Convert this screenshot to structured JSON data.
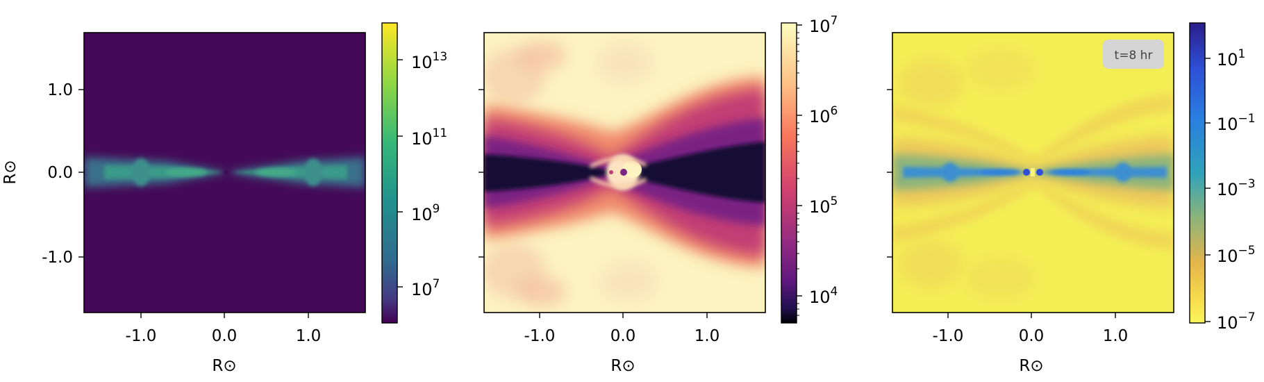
{
  "chart_data": [
    {
      "type": "heatmap",
      "panel": "left",
      "x_ticks": [
        "-1.0",
        "0.0",
        "1.0"
      ],
      "y_ticks": [
        "1.0",
        "0.0",
        "-1.0"
      ],
      "x_tick_values": [
        -1.0,
        0.0,
        1.0
      ],
      "y_tick_values": [
        1.0,
        0.0,
        -1.0
      ],
      "xlim": [
        -1.65,
        1.65
      ],
      "ylim": [
        -1.65,
        1.65
      ],
      "xlabel": "R⊙",
      "ylabel": "R⊙",
      "colorbar": {
        "scale": "log",
        "range": [
          1000000.0,
          100000000000000.0
        ],
        "ticks": [
          {
            "base": "10",
            "exp": "13"
          },
          {
            "base": "10",
            "exp": "11"
          },
          {
            "base": "10",
            "exp": "9"
          },
          {
            "base": "10",
            "exp": "7"
          }
        ],
        "tick_values": [
          10000000000000.0,
          100000000000.0,
          1000000000.0,
          10000000.0
        ],
        "colormap": "viridis"
      }
    },
    {
      "type": "heatmap",
      "panel": "middle",
      "x_ticks": [
        "-1.0",
        "0.0",
        "1.0"
      ],
      "x_tick_values": [
        -1.0,
        0.0,
        1.0
      ],
      "xlim": [
        -1.65,
        1.65
      ],
      "ylim": [
        -1.65,
        1.65
      ],
      "xlabel": "R⊙",
      "colorbar": {
        "scale": "log",
        "range": [
          5000.0,
          10000000.0
        ],
        "ticks": [
          {
            "base": "10",
            "exp": "7"
          },
          {
            "base": "10",
            "exp": "6"
          },
          {
            "base": "10",
            "exp": "5"
          },
          {
            "base": "10",
            "exp": "4"
          }
        ],
        "tick_values": [
          10000000.0,
          1000000.0,
          100000.0,
          10000.0
        ],
        "colormap": "magma"
      }
    },
    {
      "type": "heatmap",
      "panel": "right",
      "x_ticks": [
        "-1.0",
        "0.0",
        "1.0"
      ],
      "x_tick_values": [
        -1.0,
        0.0,
        1.0
      ],
      "xlim": [
        -1.65,
        1.65
      ],
      "ylim": [
        -1.65,
        1.65
      ],
      "xlabel": "R⊙",
      "annotation": "t=8 hr",
      "colorbar": {
        "scale": "log",
        "range": [
          1e-07,
          100.0
        ],
        "ticks": [
          {
            "base": "10",
            "exp": "1"
          },
          {
            "base": "10",
            "exp": "−1"
          },
          {
            "base": "10",
            "exp": "−3"
          },
          {
            "base": "10",
            "exp": "−5"
          },
          {
            "base": "10",
            "exp": "−7"
          }
        ],
        "tick_values": [
          10,
          0.1,
          0.001,
          1e-05,
          1e-07
        ],
        "colormap": "plasma_r"
      }
    }
  ],
  "colors": {
    "viridis_bg": "#440a57",
    "magma_light": "#fcf6bf",
    "plasma_bg": "#f4ee55"
  }
}
